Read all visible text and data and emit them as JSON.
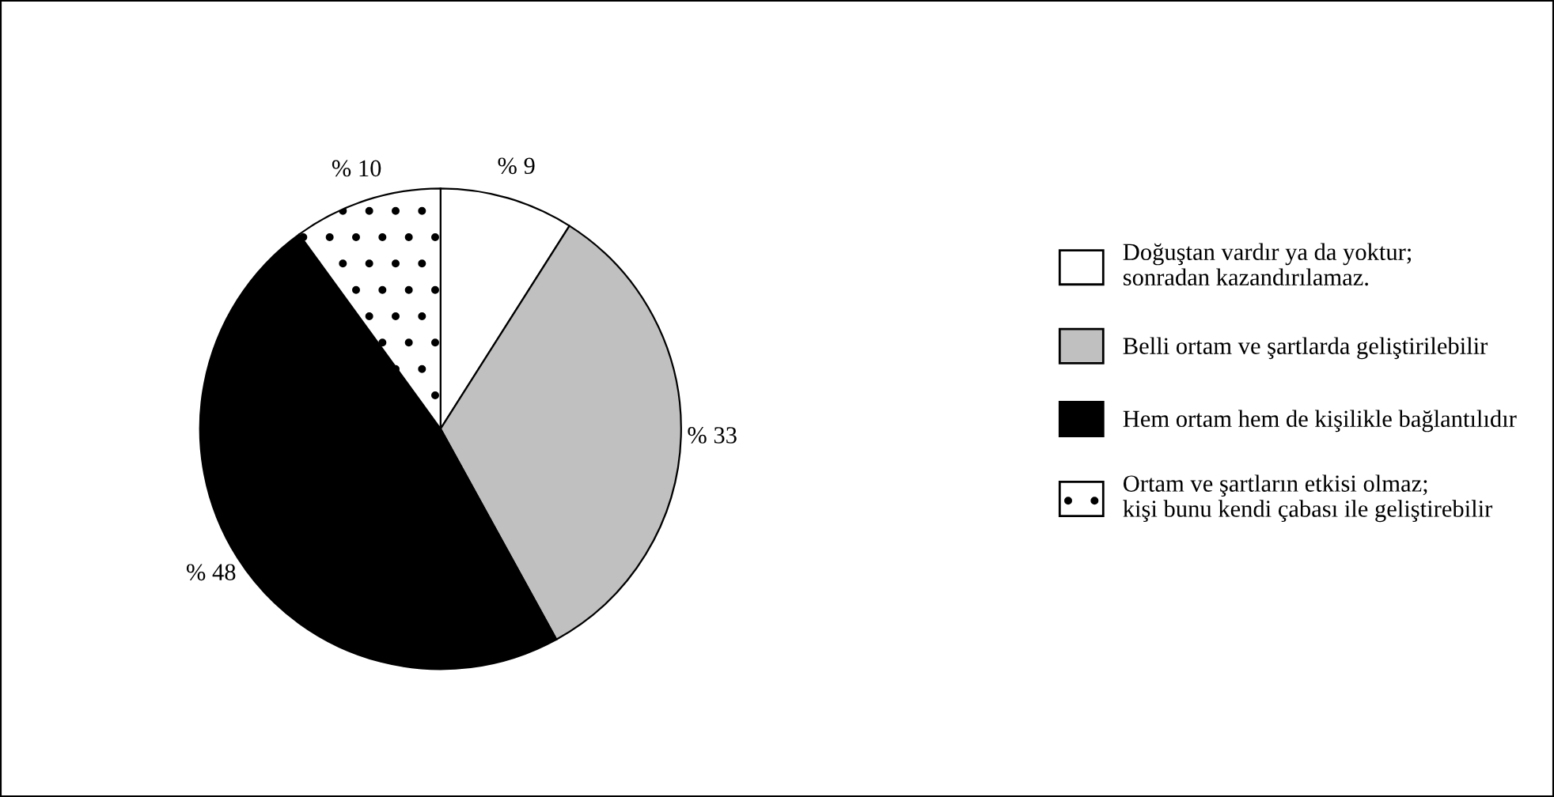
{
  "chart_data": {
    "type": "pie",
    "categories": [
      "Doğuştan vardır ya da yoktur;\nsonradan kazandırılamaz.",
      "Belli ortam ve şartlarda geliştirilebilir",
      "Hem ortam hem de kişilikle bağlantılıdır",
      "Ortam ve şartların etkisi olmaz;\nkişi bunu kendi çabası ile geliştirebilir"
    ],
    "values": [
      9,
      33,
      48,
      10
    ],
    "value_labels": [
      "% 9",
      "% 33",
      "% 48",
      "% 10"
    ],
    "colors": [
      "#ffffff",
      "#c0c0c0",
      "#000000",
      "#ffffff"
    ],
    "legend": "right"
  }
}
